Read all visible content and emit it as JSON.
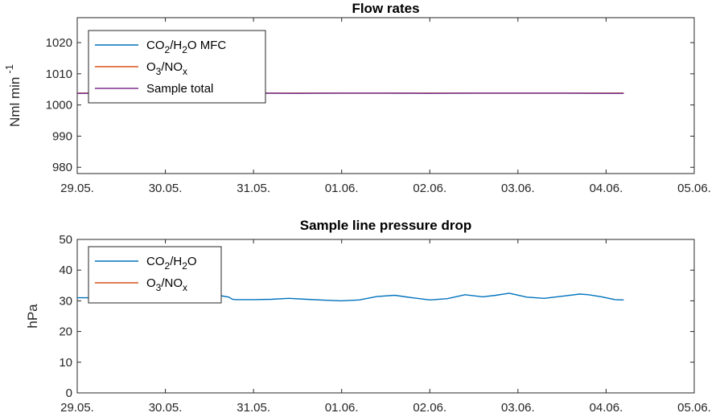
{
  "colors": {
    "co2_h2o": "#0072BD",
    "o3_nox": "#D95319",
    "sample_total": "#7E2F8E",
    "axis": "#262626"
  },
  "chart_data": [
    {
      "type": "line",
      "title": "Flow rates",
      "ylabel": {
        "main": "Nml min",
        "sup": "-1"
      },
      "x_ticks": [
        "29.05.",
        "30.05.",
        "31.05.",
        "01.06.",
        "02.06.",
        "03.06.",
        "04.06.",
        "05.06."
      ],
      "xlim": [
        0,
        7
      ],
      "ylim": [
        978,
        1028
      ],
      "y_ticks": [
        980,
        990,
        1000,
        1010,
        1020
      ],
      "grid": false,
      "legend_position": "top-left",
      "series": [
        {
          "name": "CO2/H2O MFC",
          "legend": {
            "parts": [
              [
                "CO",
                ""
              ],
              [
                "2",
                "sub"
              ],
              [
                "/H",
                ""
              ],
              [
                "2",
                "sub"
              ],
              [
                "O MFC",
                ""
              ]
            ]
          },
          "color_key": "co2_h2o",
          "x": [
            0,
            6.2
          ],
          "y": [
            1003.8,
            1003.8
          ]
        },
        {
          "name": "O3/NOx",
          "legend": {
            "parts": [
              [
                "O",
                ""
              ],
              [
                "3",
                "sub"
              ],
              [
                "/NO",
                ""
              ],
              [
                "x",
                "sub"
              ]
            ]
          },
          "color_key": "o3_nox",
          "x": [
            0,
            6.2
          ],
          "y": [
            1003.8,
            1003.8
          ]
        },
        {
          "name": "Sample total",
          "legend": {
            "parts": [
              [
                "Sample total",
                ""
              ]
            ]
          },
          "color_key": "sample_total",
          "x": [
            0,
            0.5,
            1.0,
            1.5,
            2.0,
            2.5,
            3.0,
            3.5,
            4.0,
            4.5,
            5.0,
            5.5,
            6.0,
            6.2
          ],
          "y": [
            1003.7,
            1003.8,
            1003.7,
            1003.8,
            1003.8,
            1003.7,
            1003.8,
            1003.8,
            1003.7,
            1003.8,
            1003.8,
            1003.8,
            1003.7,
            1003.7
          ]
        }
      ]
    },
    {
      "type": "line",
      "title": "Sample line pressure drop",
      "ylabel": {
        "main": "hPa",
        "sup": ""
      },
      "x_ticks": [
        "29.05.",
        "30.05.",
        "31.05.",
        "01.06.",
        "02.06.",
        "03.06.",
        "04.06.",
        "05.06."
      ],
      "xlim": [
        0,
        7
      ],
      "ylim": [
        0,
        50
      ],
      "y_ticks": [
        0,
        10,
        20,
        30,
        40,
        50
      ],
      "grid": false,
      "legend_position": "top-left",
      "series": [
        {
          "name": "CO2/H2O",
          "legend": {
            "parts": [
              [
                "CO",
                ""
              ],
              [
                "2",
                "sub"
              ],
              [
                "/H",
                ""
              ],
              [
                "2",
                "sub"
              ],
              [
                "O",
                ""
              ]
            ]
          },
          "color_key": "co2_h2o",
          "x": [
            0,
            0.3,
            0.6,
            1.0,
            1.4,
            1.6,
            1.72,
            1.76,
            1.8,
            2.0,
            2.2,
            2.4,
            2.6,
            2.8,
            3.0,
            3.2,
            3.4,
            3.6,
            3.8,
            4.0,
            4.2,
            4.4,
            4.6,
            4.75,
            4.9,
            5.1,
            5.3,
            5.5,
            5.7,
            5.8,
            5.95,
            6.1,
            6.2
          ],
          "y": [
            31.0,
            31.0,
            31.1,
            31.2,
            31.3,
            31.8,
            31.2,
            30.5,
            30.4,
            30.4,
            30.5,
            30.8,
            30.5,
            30.2,
            30.0,
            30.3,
            31.4,
            31.8,
            31.0,
            30.3,
            30.7,
            32.0,
            31.3,
            31.8,
            32.5,
            31.2,
            30.8,
            31.5,
            32.2,
            32.0,
            31.3,
            30.4,
            30.3
          ]
        },
        {
          "name": "O3/NOx",
          "legend": {
            "parts": [
              [
                "O",
                ""
              ],
              [
                "3",
                "sub"
              ],
              [
                "/NO",
                ""
              ],
              [
                "x",
                "sub"
              ]
            ]
          },
          "color_key": "o3_nox",
          "x": [],
          "y": []
        }
      ]
    }
  ]
}
